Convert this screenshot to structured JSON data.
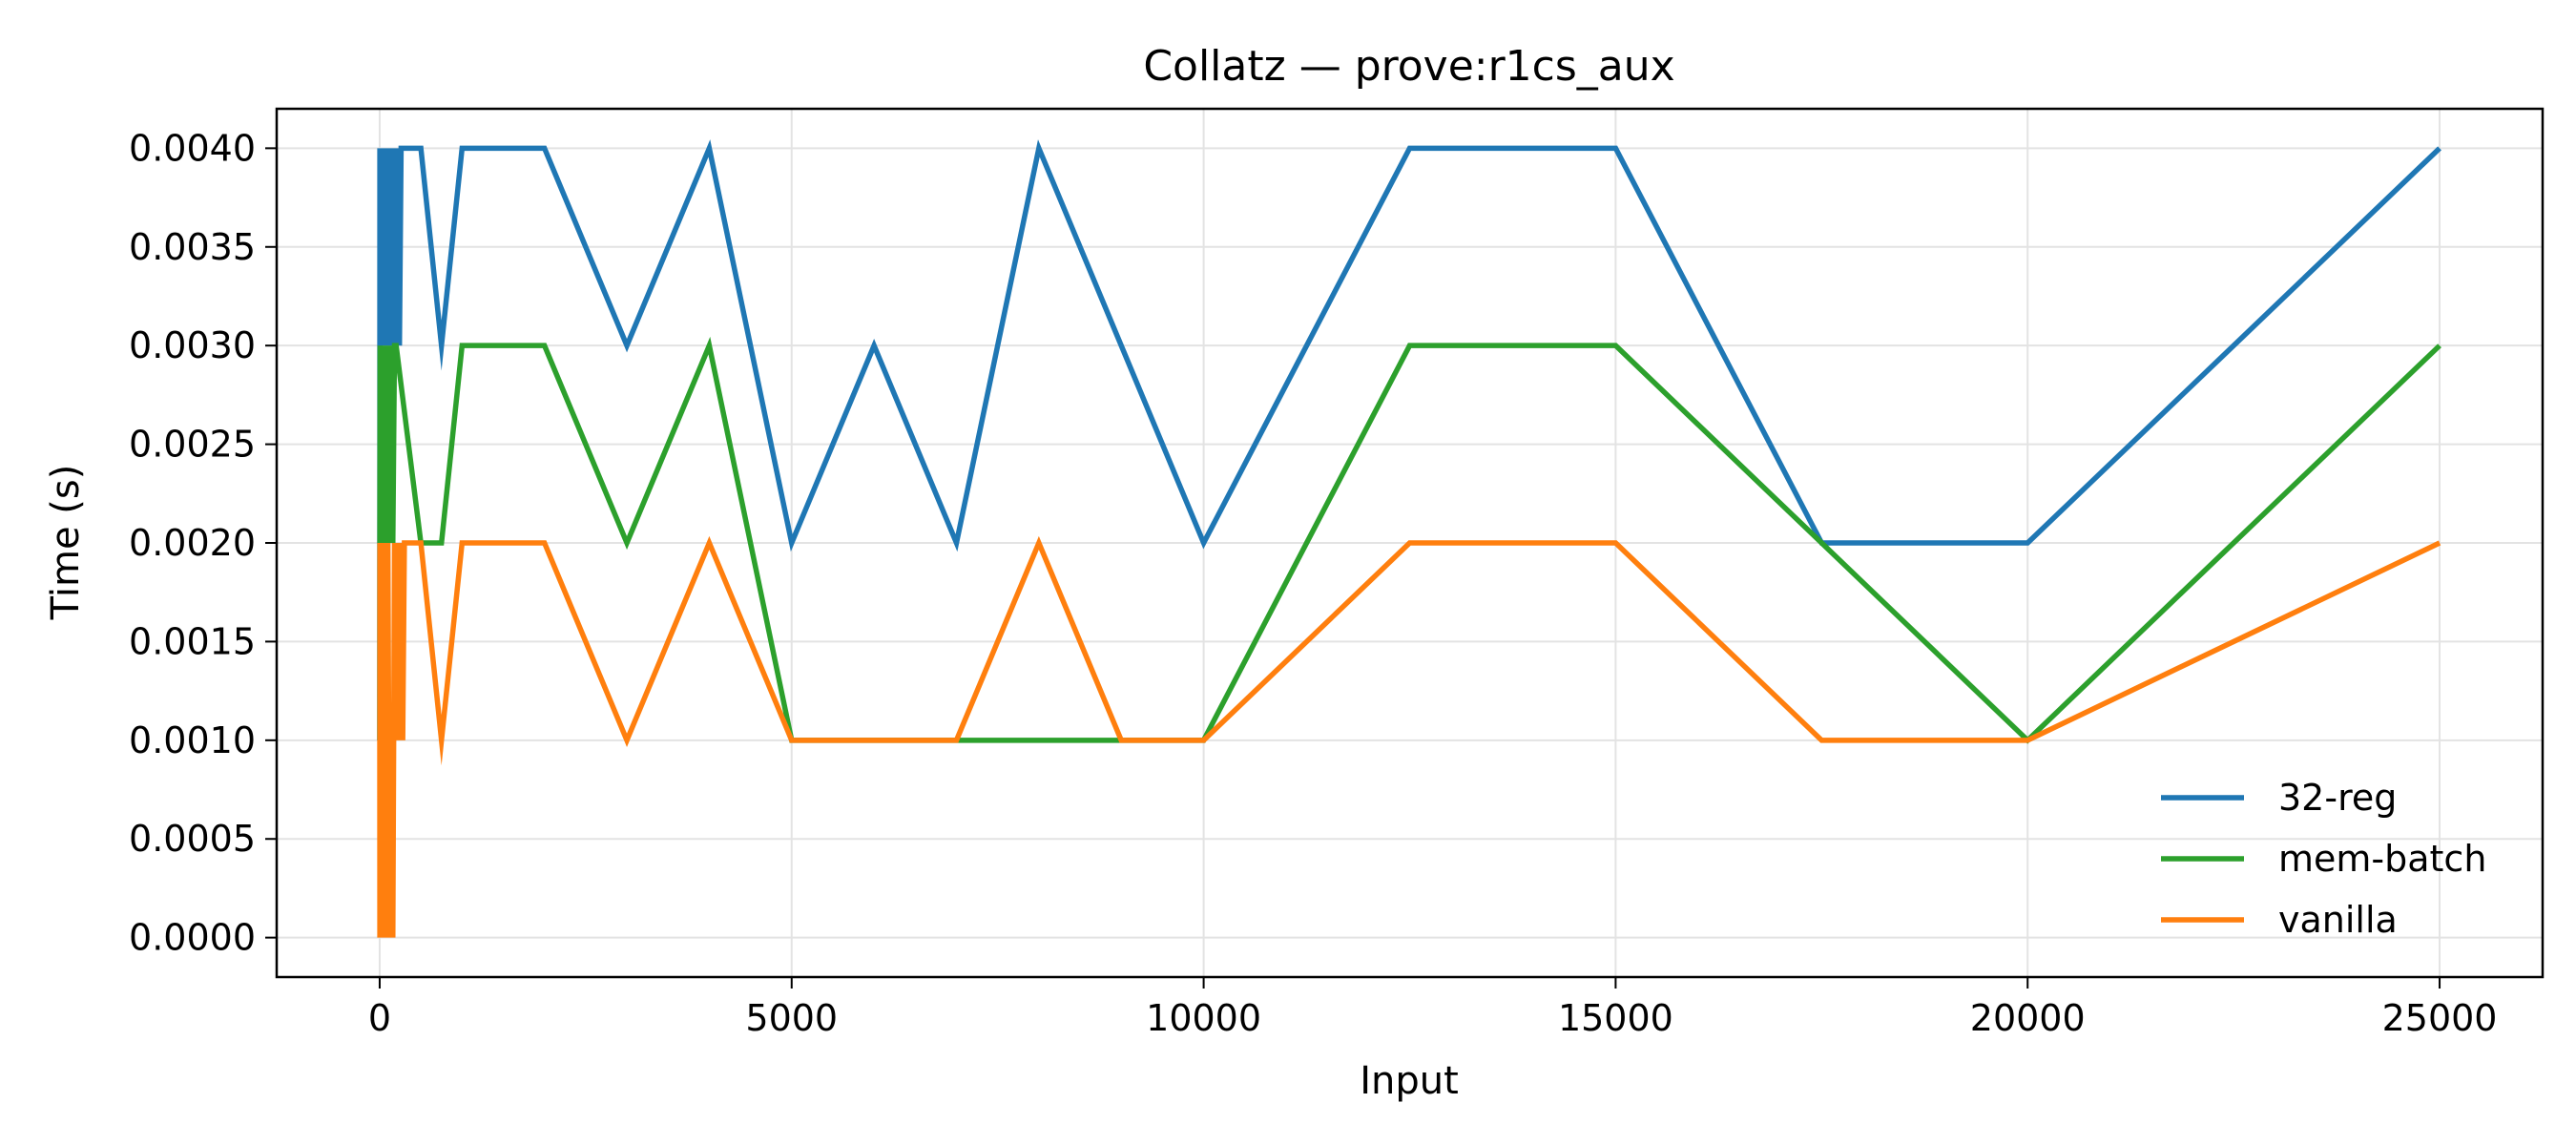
{
  "chart_data": {
    "type": "line",
    "title": "Collatz — prove:r1cs_aux",
    "xlabel": "Input",
    "ylabel": "Time (s)",
    "xlim": [
      -1250,
      26250
    ],
    "ylim": [
      -0.0002,
      0.0042
    ],
    "x_ticks": [
      0,
      5000,
      10000,
      15000,
      20000,
      25000
    ],
    "x_tick_labels": [
      "0",
      "5000",
      "10000",
      "15000",
      "20000",
      "25000"
    ],
    "y_ticks": [
      0,
      0.0005,
      0.001,
      0.0015,
      0.002,
      0.0025,
      0.003,
      0.0035,
      0.004
    ],
    "y_tick_labels": [
      "0.0000",
      "0.0005",
      "0.0010",
      "0.0015",
      "0.0020",
      "0.0025",
      "0.0030",
      "0.0035",
      "0.0040"
    ],
    "grid": true,
    "legend_position": "lower-right",
    "series": [
      {
        "name": "32-reg",
        "color": "#1f77b4",
        "points": [
          [
            1,
            0.001
          ],
          [
            2,
            0.004
          ],
          [
            3,
            0.002
          ],
          [
            4,
            0.004
          ],
          [
            5,
            0.003
          ],
          [
            6,
            0.004
          ],
          [
            7,
            0.003
          ],
          [
            8,
            0.004
          ],
          [
            9,
            0.003
          ],
          [
            10,
            0.004
          ],
          [
            15,
            0.003
          ],
          [
            20,
            0.004
          ],
          [
            25,
            0.003
          ],
          [
            30,
            0.004
          ],
          [
            40,
            0.003
          ],
          [
            50,
            0.004
          ],
          [
            60,
            0.003
          ],
          [
            70,
            0.004
          ],
          [
            80,
            0.003
          ],
          [
            90,
            0.004
          ],
          [
            100,
            0.003
          ],
          [
            110,
            0.004
          ],
          [
            120,
            0.003
          ],
          [
            130,
            0.004
          ],
          [
            140,
            0.003
          ],
          [
            150,
            0.004
          ],
          [
            160,
            0.003
          ],
          [
            170,
            0.004
          ],
          [
            180,
            0.003
          ],
          [
            190,
            0.004
          ],
          [
            200,
            0.003
          ],
          [
            220,
            0.004
          ],
          [
            240,
            0.003
          ],
          [
            260,
            0.004
          ],
          [
            280,
            0.004
          ],
          [
            500,
            0.004
          ],
          [
            750,
            0.003
          ],
          [
            1000,
            0.004
          ],
          [
            2000,
            0.004
          ],
          [
            3000,
            0.003
          ],
          [
            4000,
            0.004
          ],
          [
            5000,
            0.002
          ],
          [
            6000,
            0.003
          ],
          [
            7000,
            0.002
          ],
          [
            8000,
            0.004
          ],
          [
            10000,
            0.002
          ],
          [
            12500,
            0.004
          ],
          [
            15000,
            0.004
          ],
          [
            17500,
            0.002
          ],
          [
            20000,
            0.002
          ],
          [
            25000,
            0.004
          ]
        ]
      },
      {
        "name": "mem-batch",
        "color": "#2ca02c",
        "points": [
          [
            1,
            0.001
          ],
          [
            2,
            0.002
          ],
          [
            5,
            0.003
          ],
          [
            10,
            0.002
          ],
          [
            20,
            0.003
          ],
          [
            30,
            0.002
          ],
          [
            40,
            0.003
          ],
          [
            50,
            0.002
          ],
          [
            60,
            0.003
          ],
          [
            70,
            0.002
          ],
          [
            80,
            0.003
          ],
          [
            90,
            0.002
          ],
          [
            100,
            0.003
          ],
          [
            120,
            0.002
          ],
          [
            140,
            0.003
          ],
          [
            160,
            0.002
          ],
          [
            180,
            0.003
          ],
          [
            200,
            0.003
          ],
          [
            500,
            0.002
          ],
          [
            750,
            0.002
          ],
          [
            1000,
            0.003
          ],
          [
            2000,
            0.003
          ],
          [
            3000,
            0.002
          ],
          [
            4000,
            0.003
          ],
          [
            5000,
            0.001
          ],
          [
            10000,
            0.001
          ],
          [
            12500,
            0.003
          ],
          [
            15000,
            0.003
          ],
          [
            17500,
            0.002
          ],
          [
            20000,
            0.001
          ],
          [
            25000,
            0.003
          ]
        ]
      },
      {
        "name": "vanilla",
        "color": "#ff7f0e",
        "points": [
          [
            1,
            0.001
          ],
          [
            2,
            0.0
          ],
          [
            3,
            0.002
          ],
          [
            5,
            0.0
          ],
          [
            10,
            0.002
          ],
          [
            20,
            0.0
          ],
          [
            30,
            0.002
          ],
          [
            40,
            0.0
          ],
          [
            60,
            0.002
          ],
          [
            80,
            0.0
          ],
          [
            100,
            0.002
          ],
          [
            120,
            0.0
          ],
          [
            140,
            0.001
          ],
          [
            160,
            0.0
          ],
          [
            180,
            0.002
          ],
          [
            200,
            0.001
          ],
          [
            220,
            0.002
          ],
          [
            240,
            0.001
          ],
          [
            260,
            0.002
          ],
          [
            280,
            0.001
          ],
          [
            300,
            0.002
          ],
          [
            500,
            0.002
          ],
          [
            750,
            0.001
          ],
          [
            1000,
            0.002
          ],
          [
            2000,
            0.002
          ],
          [
            3000,
            0.001
          ],
          [
            4000,
            0.002
          ],
          [
            5000,
            0.001
          ],
          [
            7000,
            0.001
          ],
          [
            8000,
            0.002
          ],
          [
            9000,
            0.001
          ],
          [
            10000,
            0.001
          ],
          [
            12500,
            0.002
          ],
          [
            15000,
            0.002
          ],
          [
            17500,
            0.001
          ],
          [
            20000,
            0.001
          ],
          [
            25000,
            0.002
          ]
        ]
      }
    ]
  }
}
